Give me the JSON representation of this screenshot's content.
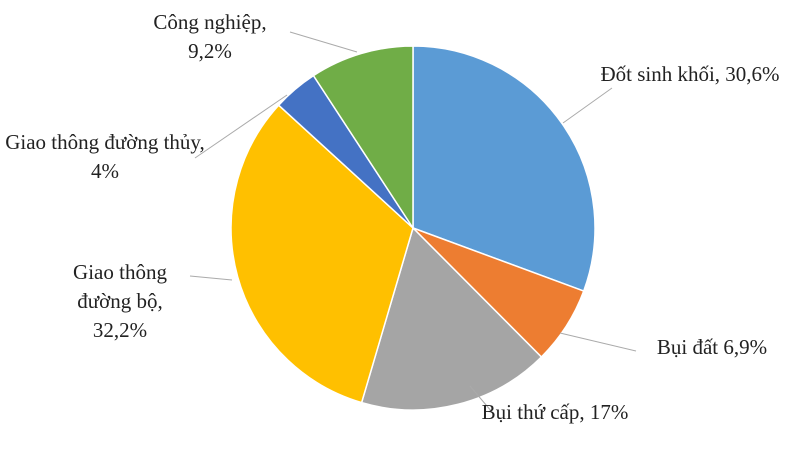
{
  "chart_data": {
    "type": "pie",
    "categories": [
      "Đốt sinh khối,",
      "Bụi đất",
      "Bụi thứ cấp,",
      "Giao thông đường bộ,",
      "Giao thông đường thủy,",
      "Công nghiệp,"
    ],
    "values": [
      30.6,
      6.9,
      17,
      32.2,
      4,
      9.2
    ],
    "value_labels": [
      "30,6%",
      "6,9%",
      "17%",
      "32,2%",
      "4%",
      "9,2%"
    ],
    "colors": [
      "#5b9bd5",
      "#ed7d31",
      "#a5a5a5",
      "#ffc000",
      "#4472c4",
      "#70ad47"
    ]
  }
}
